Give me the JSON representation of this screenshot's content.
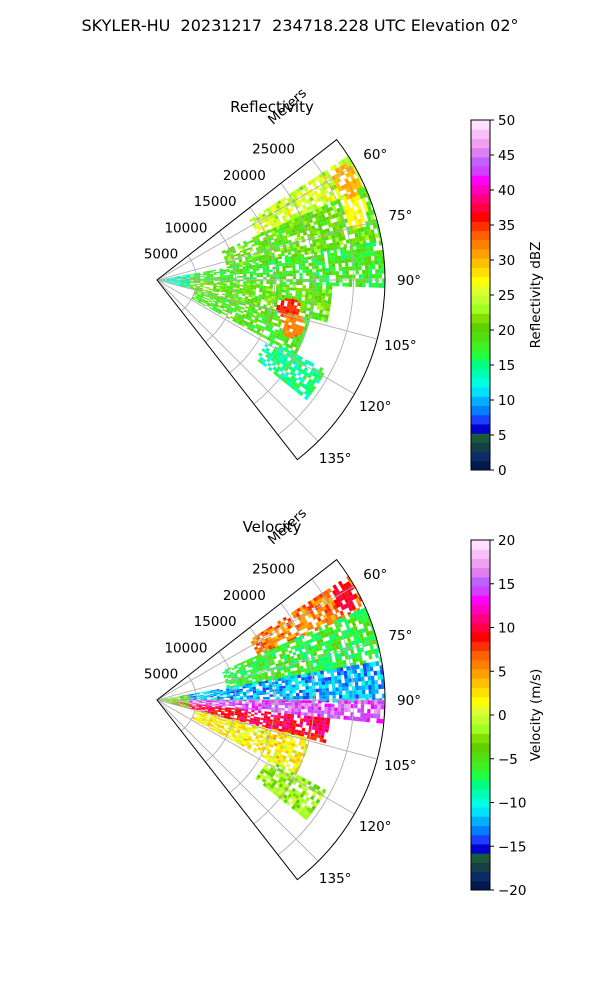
{
  "figure": {
    "title": "SKYLER-HU  20231217  234718.228 UTC Elevation 02°"
  },
  "chart_data": [
    {
      "type": "heatmap",
      "projection": "polar-sector",
      "title": "Reflectivity",
      "range_label": "Meters",
      "range_ticks": [
        5000,
        10000,
        15000,
        20000,
        25000
      ],
      "range_tick_labels": [
        "5000",
        "10000",
        "15000",
        "20000",
        "25000"
      ],
      "range_lim": [
        0,
        29000
      ],
      "azimuth_lim_deg": [
        52,
        142
      ],
      "azimuth_ticks_deg": [
        60,
        75,
        90,
        105,
        120,
        135
      ],
      "azimuth_tick_labels": [
        "60°",
        "75°",
        "90°",
        "105°",
        "120°",
        "135°"
      ],
      "grid": true,
      "colorbar": {
        "label": "Reflectivity dBZ",
        "min": 0,
        "max": 50,
        "ticks": [
          0,
          5,
          10,
          15,
          20,
          25,
          30,
          35,
          40,
          45,
          50
        ],
        "tick_labels": [
          "0",
          "5",
          "10",
          "15",
          "20",
          "25",
          "30",
          "35",
          "40",
          "45",
          "50"
        ],
        "colors": [
          "#001a4d",
          "#0d2b66",
          "#133f45",
          "#1a5a3a",
          "#0000cc",
          "#1a40ff",
          "#0080ff",
          "#00b0ff",
          "#00e0ff",
          "#00ffe0",
          "#00ffb0",
          "#00ff80",
          "#20ff40",
          "#40f020",
          "#50e010",
          "#60d000",
          "#80e000",
          "#a0ff20",
          "#c0ff30",
          "#e0ff30",
          "#ffff00",
          "#ffe000",
          "#ffc000",
          "#ffa000",
          "#ff8000",
          "#ff6000",
          "#ff3000",
          "#ff0000",
          "#ff0040",
          "#ff0080",
          "#ff00c0",
          "#ff00ff",
          "#d040ff",
          "#c060ff",
          "#e080f0",
          "#f0a0f0",
          "#f8c0f8",
          "#ffe0ff"
        ]
      },
      "field": {
        "units": "dBZ",
        "regions": [
          {
            "az": [
              57,
              66
            ],
            "r": [
              14000,
              29000
            ],
            "value": 25
          },
          {
            "az": [
              66,
              80
            ],
            "r": [
              9000,
              29000
            ],
            "value": 20
          },
          {
            "az": [
              80,
              92
            ],
            "r": [
              3000,
              29000
            ],
            "value": 18
          },
          {
            "az": [
              92,
              104
            ],
            "r": [
              3000,
              22000
            ],
            "value": 20
          },
          {
            "az": [
              104,
              118
            ],
            "r": [
              5000,
              20000
            ],
            "value": 19
          },
          {
            "az": [
              118,
              128
            ],
            "r": [
              16000,
              24000
            ],
            "value": 15
          },
          {
            "az": [
              80,
              104
            ],
            "r": [
              0,
              4000
            ],
            "value": 13
          }
        ],
        "hotspots": [
          {
            "az": 70,
            "r": 26500,
            "value": 27
          },
          {
            "az": 62,
            "r": 27000,
            "value": 30
          },
          {
            "az": 102,
            "r": 17000,
            "value": 35
          },
          {
            "az": 112,
            "r": 22000,
            "value": 33
          },
          {
            "az": 108,
            "r": 18000,
            "value": 32
          }
        ]
      }
    },
    {
      "type": "heatmap",
      "projection": "polar-sector",
      "title": "Velocity",
      "range_label": "Meters",
      "range_ticks": [
        5000,
        10000,
        15000,
        20000,
        25000
      ],
      "range_tick_labels": [
        "5000",
        "10000",
        "15000",
        "20000",
        "25000"
      ],
      "range_lim": [
        0,
        29000
      ],
      "azimuth_lim_deg": [
        52,
        142
      ],
      "azimuth_ticks_deg": [
        60,
        75,
        90,
        105,
        120,
        135
      ],
      "azimuth_tick_labels": [
        "60°",
        "75°",
        "90°",
        "105°",
        "120°",
        "135°"
      ],
      "grid": true,
      "colorbar": {
        "label": "Velocity (m/s)",
        "min": -20,
        "max": 20,
        "ticks": [
          -20,
          -15,
          -10,
          -5,
          0,
          5,
          10,
          15,
          20
        ],
        "tick_labels": [
          "−20",
          "−15",
          "−10",
          "−5",
          "0",
          "5",
          "10",
          "15",
          "20"
        ],
        "colors": [
          "#001a4d",
          "#0d2b66",
          "#133f45",
          "#1a5a3a",
          "#0000cc",
          "#1a40ff",
          "#0080ff",
          "#00b0ff",
          "#00e0ff",
          "#00ffe0",
          "#00ffb0",
          "#00ff80",
          "#20ff40",
          "#40f020",
          "#50e010",
          "#60d000",
          "#80e000",
          "#a0ff20",
          "#c0ff30",
          "#e0ff30",
          "#ffff00",
          "#ffe000",
          "#ffc000",
          "#ffa000",
          "#ff8000",
          "#ff6000",
          "#ff3000",
          "#ff0000",
          "#ff0040",
          "#ff0080",
          "#ff00c0",
          "#ff00ff",
          "#d040ff",
          "#c060ff",
          "#e080f0",
          "#f0a0f0",
          "#f8c0f8",
          "#ffe0ff"
        ]
      },
      "field": {
        "units": "m/s",
        "regions": [
          {
            "az": [
              57,
              66
            ],
            "r": [
              14000,
              29000
            ],
            "value": 6
          },
          {
            "az": [
              66,
              80
            ],
            "r": [
              9000,
              29000
            ],
            "value": -6
          },
          {
            "az": [
              80,
              90
            ],
            "r": [
              3000,
              29000
            ],
            "value": -12
          },
          {
            "az": [
              90,
              96
            ],
            "r": [
              2000,
              29000
            ],
            "value": 15
          },
          {
            "az": [
              96,
              104
            ],
            "r": [
              2000,
              22000
            ],
            "value": 10
          },
          {
            "az": [
              104,
              118
            ],
            "r": [
              5000,
              20000
            ],
            "value": 2
          },
          {
            "az": [
              118,
              128
            ],
            "r": [
              16000,
              24000
            ],
            "value": -2
          },
          {
            "az": [
              80,
              104
            ],
            "r": [
              0,
              4000
            ],
            "value": -3
          }
        ],
        "hotspots": [
          {
            "az": 60,
            "r": 27000,
            "value": 9
          },
          {
            "az": 100,
            "r": 9000,
            "value": 9
          },
          {
            "az": 95,
            "r": 26000,
            "value": 14
          }
        ]
      }
    }
  ]
}
